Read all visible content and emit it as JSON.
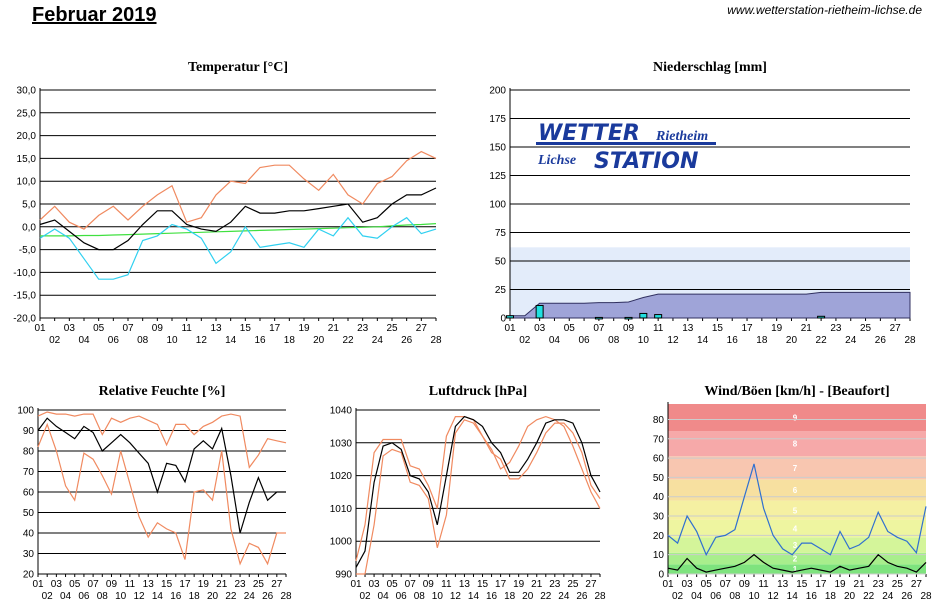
{
  "header": {
    "title": "Februar 2019",
    "url": "www.wetterstation-rietheim-lichse.de"
  },
  "logo": {
    "top_left": "WETTER",
    "top_right": "Rietheim",
    "bottom_left": "Lichse",
    "bottom_right": "STATION"
  },
  "colors": {
    "grid": "#000000",
    "max": "#f08a60",
    "min": "#30d0f0",
    "mean": "#000000",
    "ground": "#40e040",
    "rain_fill": "#9fa4d8",
    "rain_bar": "#20e0e0",
    "wind": "#3070d0",
    "gust": "#000000",
    "logo": "#1a3a9c"
  },
  "chart_data": [
    {
      "id": "temperature",
      "type": "line",
      "title": "Temperatur [°C]",
      "x": [
        1,
        2,
        3,
        4,
        5,
        6,
        7,
        8,
        9,
        10,
        11,
        12,
        13,
        14,
        15,
        16,
        17,
        18,
        19,
        20,
        21,
        22,
        23,
        24,
        25,
        26,
        27,
        28
      ],
      "ylim": [
        -20,
        30
      ],
      "yticks": [
        "30,0",
        "25,0",
        "20,0",
        "15,0",
        "10,0",
        "5,0",
        "0,0",
        "-5,0",
        "-10,0",
        "-15,0",
        "-20,0"
      ],
      "series": [
        {
          "key": "max",
          "values": [
            1.5,
            4.5,
            1.0,
            -0.5,
            2.5,
            4.5,
            1.5,
            4.5,
            7.0,
            9.0,
            1.0,
            2.0,
            7.0,
            10.0,
            9.5,
            13.0,
            13.5,
            13.5,
            10.5,
            8.0,
            11.5,
            7.0,
            5.0,
            9.5,
            11.0,
            14.5,
            16.5,
            15.0
          ]
        },
        {
          "key": "mean",
          "values": [
            0.5,
            1.5,
            -1.0,
            -3.5,
            -5.0,
            -5.0,
            -3.0,
            0.5,
            3.5,
            3.5,
            0.5,
            -0.5,
            -1.0,
            1.0,
            4.5,
            3.0,
            3.0,
            3.5,
            3.5,
            4.0,
            4.5,
            5.0,
            1.0,
            2.0,
            5.0,
            7.0,
            7.0,
            8.5
          ]
        },
        {
          "key": "min",
          "values": [
            -2.5,
            -0.5,
            -2.5,
            -7.0,
            -11.5,
            -11.5,
            -10.5,
            -3.0,
            -2.0,
            0.5,
            -0.5,
            -2.5,
            -8.0,
            -5.5,
            0.0,
            -4.5,
            -4.0,
            -3.5,
            -4.5,
            -0.5,
            -2.0,
            2.0,
            -2.0,
            -2.5,
            0.0,
            2.0,
            -1.5,
            -0.5
          ]
        },
        {
          "key": "ground",
          "values": [
            -2.0,
            -2.0,
            -2.0,
            -1.9,
            -1.9,
            -1.8,
            -1.7,
            -1.6,
            -1.5,
            -1.4,
            -1.3,
            -1.2,
            -1.1,
            -1.0,
            -0.9,
            -0.8,
            -0.7,
            -0.6,
            -0.5,
            -0.4,
            -0.3,
            -0.2,
            -0.1,
            0.0,
            0.2,
            0.4,
            0.5,
            0.7
          ]
        }
      ]
    },
    {
      "id": "precipitation",
      "type": "bar",
      "title": "Niederschlag [mm]",
      "x": [
        1,
        2,
        3,
        4,
        5,
        6,
        7,
        8,
        9,
        10,
        11,
        12,
        13,
        14,
        15,
        16,
        17,
        18,
        19,
        20,
        21,
        22,
        23,
        24,
        25,
        26,
        27,
        28
      ],
      "ylim": [
        0,
        200
      ],
      "yticks": [
        "200",
        "175",
        "150",
        "125",
        "100",
        "75",
        "50",
        "25",
        "0"
      ],
      "daily": [
        2.0,
        0.0,
        11.0,
        0.0,
        0.0,
        0.0,
        0.5,
        0.0,
        0.5,
        4.0,
        3.0,
        0.0,
        0.0,
        0.0,
        0.0,
        0.0,
        0.0,
        0.0,
        0.0,
        0.0,
        0.0,
        1.5,
        0.0,
        0.0,
        0.0,
        0.0,
        0.0,
        0.0
      ],
      "cumulative": [
        2,
        2,
        13,
        13,
        13,
        13,
        13.5,
        13.5,
        14,
        18,
        21,
        21,
        21,
        21,
        21,
        21,
        21,
        21,
        21,
        21,
        21,
        22.5,
        22.5,
        22.5,
        22.5,
        22.5,
        22.5,
        22.5
      ],
      "reference_level": 62
    },
    {
      "id": "humidity",
      "type": "line",
      "title": "Relative Feuchte [%]",
      "x": [
        1,
        2,
        3,
        4,
        5,
        6,
        7,
        8,
        9,
        10,
        11,
        12,
        13,
        14,
        15,
        16,
        17,
        18,
        19,
        20,
        21,
        22,
        23,
        24,
        25,
        26,
        27,
        28
      ],
      "ylim": [
        20,
        100
      ],
      "yticks": [
        "100",
        "90",
        "80",
        "70",
        "60",
        "50",
        "40",
        "30",
        "20"
      ],
      "series": [
        {
          "key": "max",
          "values": [
            97,
            99,
            98,
            98,
            97,
            98,
            98,
            88,
            96,
            94,
            96,
            97,
            95,
            93,
            83,
            93,
            93,
            88,
            92,
            94,
            97,
            98,
            97,
            72,
            78,
            86,
            85,
            84
          ]
        },
        {
          "key": "mean",
          "values": [
            90,
            96,
            92,
            89,
            86,
            92,
            89,
            80,
            84,
            88,
            84,
            79,
            74,
            60,
            74,
            73,
            65,
            81,
            85,
            81,
            91,
            68,
            40,
            55,
            67,
            56,
            60,
            60
          ]
        },
        {
          "key": "min",
          "values": [
            82,
            93,
            80,
            63,
            56,
            79,
            76,
            68,
            59,
            80,
            64,
            48,
            38,
            45,
            42,
            40,
            27,
            60,
            61,
            56,
            80,
            42,
            25,
            35,
            33,
            25,
            40,
            40
          ]
        }
      ]
    },
    {
      "id": "pressure",
      "type": "line",
      "title": "Luftdruck [hPa]",
      "x": [
        1,
        2,
        3,
        4,
        5,
        6,
        7,
        8,
        9,
        10,
        11,
        12,
        13,
        14,
        15,
        16,
        17,
        18,
        19,
        20,
        21,
        22,
        23,
        24,
        25,
        26,
        27,
        28
      ],
      "ylim": [
        990,
        1040
      ],
      "yticks": [
        "1040",
        "1030",
        "1020",
        "1010",
        "1000",
        "990"
      ],
      "series": [
        {
          "key": "max",
          "values": [
            994,
            1005,
            1027,
            1031,
            1031,
            1031,
            1023,
            1022,
            1017,
            1010,
            1032,
            1038,
            1038,
            1037,
            1032,
            1028,
            1022,
            1024,
            1029,
            1035,
            1037,
            1038,
            1037,
            1035,
            1029,
            1022,
            1015,
            1010
          ]
        },
        {
          "key": "mean",
          "values": [
            992,
            997,
            1018,
            1029,
            1030,
            1028,
            1020,
            1019,
            1015,
            1005,
            1020,
            1035,
            1038,
            1037,
            1035,
            1030,
            1027,
            1021,
            1021,
            1025,
            1030,
            1036,
            1037,
            1037,
            1036,
            1030,
            1020,
            1015
          ]
        },
        {
          "key": "min",
          "values": [
            990,
            990,
            1005,
            1026,
            1028,
            1027,
            1018,
            1017,
            1013,
            998,
            1008,
            1033,
            1037,
            1036,
            1032,
            1027,
            1025,
            1019,
            1019,
            1022,
            1027,
            1033,
            1036,
            1036,
            1033,
            1027,
            1017,
            1013
          ]
        }
      ]
    },
    {
      "id": "wind",
      "type": "line",
      "title": "Wind/Böen [km/h] - [Beaufort]",
      "x": [
        1,
        2,
        3,
        4,
        5,
        6,
        7,
        8,
        9,
        10,
        11,
        12,
        13,
        14,
        15,
        16,
        17,
        18,
        19,
        20,
        21,
        22,
        23,
        24,
        25,
        26,
        27,
        28
      ],
      "ylim": [
        0,
        88
      ],
      "yticks": [
        "80",
        "70",
        "60",
        "50",
        "40",
        "30",
        "20",
        "10",
        "0"
      ],
      "beaufort_labels": [
        "1",
        "2",
        "3",
        "4",
        "5",
        "6",
        "7",
        "8",
        "9"
      ],
      "beaufort_bounds": [
        0,
        5,
        11,
        19,
        28,
        38,
        49,
        61,
        74,
        88
      ],
      "band_colors": [
        "#7ee37e",
        "#a8ee8c",
        "#d4f59a",
        "#eef5a0",
        "#f5f0a2",
        "#f7e0a0",
        "#f8c6b0",
        "#f6a9a9",
        "#f08a8a"
      ],
      "series": [
        {
          "key": "gust",
          "values": [
            20,
            16,
            30,
            22,
            10,
            19,
            20,
            23,
            40,
            57,
            34,
            20,
            13,
            10,
            16,
            16,
            13,
            10,
            22,
            13,
            15,
            19,
            32,
            22,
            19,
            17,
            11,
            35
          ]
        },
        {
          "key": "wind",
          "values": [
            3,
            2,
            8,
            3,
            1,
            2,
            3,
            4,
            6,
            10,
            6,
            3,
            2,
            1,
            2,
            3,
            2,
            1,
            4,
            2,
            3,
            4,
            10,
            6,
            4,
            3,
            1,
            6
          ]
        }
      ]
    }
  ]
}
